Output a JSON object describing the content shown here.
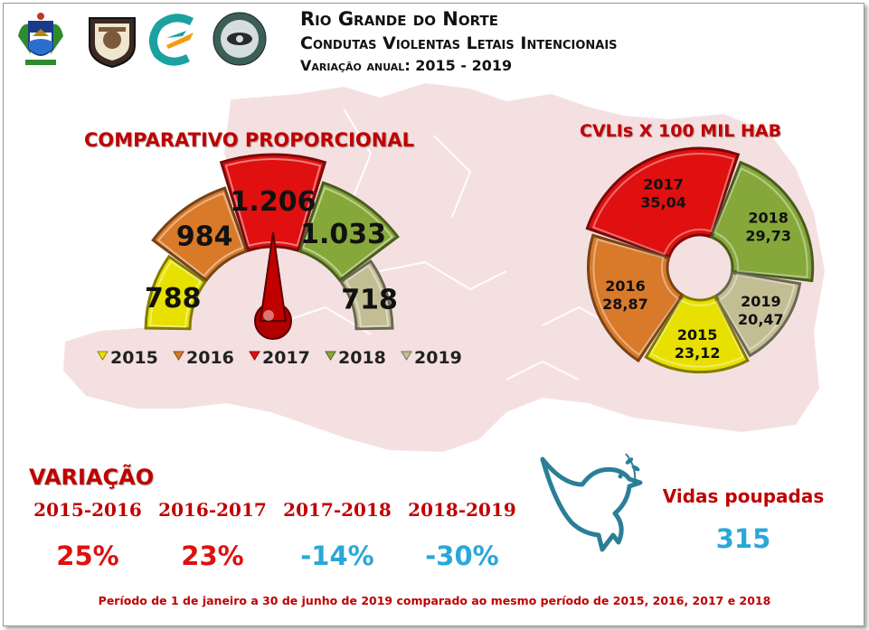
{
  "header": {
    "title_line1": "Rio Grande do Norte",
    "title_line2": "Condutas Violentas Letais Intencionais",
    "title_line3": "Variação anual: 2015 - 2019"
  },
  "logos": [
    "state-coat-of-arms-icon",
    "police-badge-icon",
    "agency-swirl-logo-icon",
    "coine-seal-icon"
  ],
  "colors": {
    "2015": "#e8e000",
    "2016": "#d97a2a",
    "2017": "#e01010",
    "2018": "#86a83a",
    "2019": "#c3bd94",
    "accent_red": "#c00000",
    "accent_blue": "#29a8d8"
  },
  "chart_data": [
    {
      "type": "bar",
      "title": "COMPARATIVO PROPORCIONAL",
      "style": "gauge",
      "categories": [
        "2015",
        "2016",
        "2017",
        "2018",
        "2019"
      ],
      "values": [
        788,
        984,
        1206,
        1033,
        718
      ],
      "value_labels": [
        "788",
        "984",
        "1.206",
        "1.033",
        "718"
      ],
      "legend": [
        "2015",
        "2016",
        "2017",
        "2018",
        "2019"
      ],
      "legend_position": "bottom"
    },
    {
      "type": "pie",
      "title": "CVLIs X 100 MIL HAB",
      "style": "donut",
      "labels": [
        "2017",
        "2018",
        "2019",
        "2015",
        "2016"
      ],
      "values": [
        35.04,
        29.73,
        20.47,
        23.12,
        28.87
      ],
      "value_labels": [
        "35,04",
        "29,73",
        "20,47",
        "23,12",
        "28,87"
      ]
    }
  ],
  "variation": {
    "title": "VARIAÇÃO",
    "periods": [
      {
        "label": "2015-2016",
        "value": "25%",
        "color": "#e01010"
      },
      {
        "label": "2016-2017",
        "value": "23%",
        "color": "#e01010"
      },
      {
        "label": "2017-2018",
        "value": "-14%",
        "color": "#29a8d8"
      },
      {
        "label": "2018-2019",
        "value": "-30%",
        "color": "#29a8d8"
      }
    ]
  },
  "lives_saved": {
    "label": "Vidas poupadas",
    "value": "315",
    "icon": "dove-icon"
  },
  "footer": {
    "note": "Período de 1 de janeiro a 30 de junho de 2019 comparado ao mesmo período de 2015, 2016, 2017 e 2018"
  }
}
